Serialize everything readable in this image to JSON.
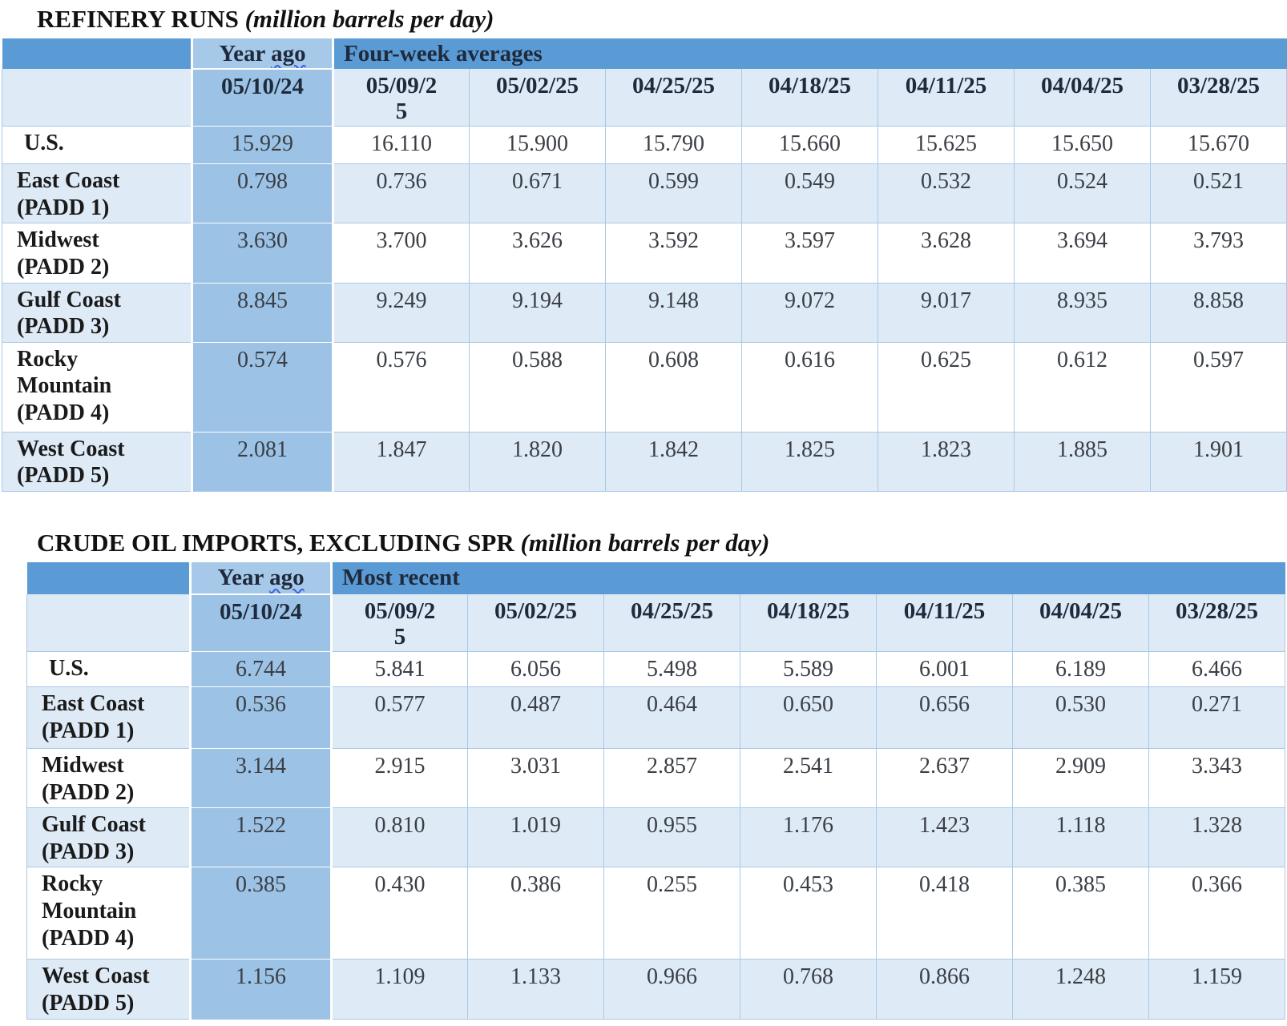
{
  "theme": {
    "header_fill": "#5B9BD5",
    "year_ago_header_fill": "#A6C9EA",
    "year_ago_column_fill": "#9CC2E5",
    "band_fill": "#DEEAF6",
    "grid_line": "#A8C9E5",
    "squiggle_color": "#3E62DE"
  },
  "tables": [
    {
      "title": "REFINERY RUNS",
      "unit_note": "(million barrels per day)",
      "header": {
        "year_ago": {
          "word": "Year",
          "wavy_word": "ago"
        },
        "group_label": "Four-week averages",
        "year_ago_date": "05/10/24",
        "dates": [
          "05/09/25",
          "05/02/25",
          "04/25/25",
          "04/18/25",
          "04/11/25",
          "04/04/25",
          "03/28/25"
        ]
      },
      "rows": [
        {
          "label": "U.S.",
          "year_ago": "15.929",
          "values": [
            "16.110",
            "15.900",
            "15.790",
            "15.660",
            "15.625",
            "15.650",
            "15.670"
          ]
        },
        {
          "label": "East Coast (PADD 1)",
          "year_ago": "0.798",
          "values": [
            "0.736",
            "0.671",
            "0.599",
            "0.549",
            "0.532",
            "0.524",
            "0.521"
          ]
        },
        {
          "label": "Midwest (PADD 2)",
          "year_ago": "3.630",
          "values": [
            "3.700",
            "3.626",
            "3.592",
            "3.597",
            "3.628",
            "3.694",
            "3.793"
          ]
        },
        {
          "label": "Gulf Coast (PADD 3)",
          "year_ago": "8.845",
          "values": [
            "9.249",
            "9.194",
            "9.148",
            "9.072",
            "9.017",
            "8.935",
            "8.858"
          ]
        },
        {
          "label": "Rocky Mountain (PADD 4)",
          "year_ago": "0.574",
          "values": [
            "0.576",
            "0.588",
            "0.608",
            "0.616",
            "0.625",
            "0.612",
            "0.597"
          ]
        },
        {
          "label": "West Coast (PADD 5)",
          "year_ago": "2.081",
          "values": [
            "1.847",
            "1.820",
            "1.842",
            "1.825",
            "1.823",
            "1.885",
            "1.901"
          ]
        }
      ]
    },
    {
      "title": "CRUDE OIL IMPORTS, EXCLUDING SPR",
      "unit_note": "(million barrels per day)",
      "header": {
        "year_ago": {
          "word": "Year",
          "wavy_word": "ago"
        },
        "group_label": "Most recent",
        "year_ago_date": "05/10/24",
        "dates": [
          "05/09/25",
          "05/02/25",
          "04/25/25",
          "04/18/25",
          "04/11/25",
          "04/04/25",
          "03/28/25"
        ]
      },
      "rows": [
        {
          "label": "U.S.",
          "year_ago": "6.744",
          "values": [
            "5.841",
            "6.056",
            "5.498",
            "5.589",
            "6.001",
            "6.189",
            "6.466"
          ]
        },
        {
          "label": "East Coast (PADD 1)",
          "year_ago": "0.536",
          "values": [
            "0.577",
            "0.487",
            "0.464",
            "0.650",
            "0.656",
            "0.530",
            "0.271"
          ]
        },
        {
          "label": "Midwest (PADD 2)",
          "year_ago": "3.144",
          "values": [
            "2.915",
            "3.031",
            "2.857",
            "2.541",
            "2.637",
            "2.909",
            "3.343"
          ]
        },
        {
          "label": "Gulf Coast (PADD 3)",
          "year_ago": "1.522",
          "values": [
            "0.810",
            "1.019",
            "0.955",
            "1.176",
            "1.423",
            "1.118",
            "1.328"
          ]
        },
        {
          "label": "Rocky Mountain (PADD 4)",
          "year_ago": "0.385",
          "values": [
            "0.430",
            "0.386",
            "0.255",
            "0.453",
            "0.418",
            "0.385",
            "0.366"
          ]
        },
        {
          "label": "West Coast (PADD 5)",
          "year_ago": "1.156",
          "values": [
            "1.109",
            "1.133",
            "0.966",
            "0.768",
            "0.866",
            "1.248",
            "1.159"
          ]
        }
      ]
    }
  ]
}
